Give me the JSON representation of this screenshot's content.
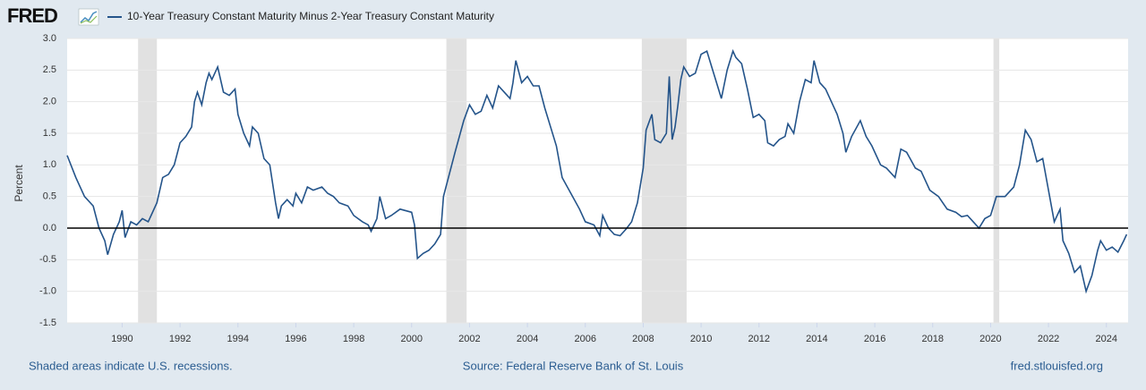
{
  "logo": "FRED",
  "chart_data": {
    "type": "line",
    "y_label": "Percent",
    "series": [
      {
        "name": "10-Year Treasury Constant Maturity Minus 2-Year Treasury Constant Maturity",
        "color": "#24548a",
        "values": [
          1.15,
          0.8,
          0.5,
          0.35,
          0.0,
          -0.2,
          -0.42,
          -0.1,
          0.1,
          0.28,
          -0.15,
          0.1,
          0.05,
          0.15,
          0.1,
          0.2,
          0.4,
          0.8,
          0.85,
          1.0,
          1.35,
          1.45,
          1.6,
          2.0,
          2.15,
          1.95,
          2.3,
          2.45,
          2.35,
          2.55,
          2.15,
          2.1,
          2.2,
          1.8,
          1.5,
          1.3,
          1.6,
          1.5,
          1.1,
          1.0,
          0.7,
          0.4,
          0.15,
          0.35,
          0.45,
          0.35,
          0.55,
          0.4,
          0.65,
          0.6,
          0.65,
          0.55,
          0.5,
          0.4,
          0.35,
          0.2,
          0.1,
          0.05,
          -0.05,
          0.15,
          0.5,
          0.15,
          0.2,
          0.3,
          0.25,
          0.05,
          -0.48,
          -0.4,
          -0.35,
          -0.25,
          -0.1,
          0.5,
          0.85,
          1.2,
          1.7,
          1.95,
          1.8,
          1.85,
          2.1,
          1.9,
          2.25,
          2.15,
          2.05,
          2.3,
          2.65,
          2.3,
          2.4,
          2.25,
          2.25,
          1.9,
          1.6,
          1.3,
          0.8,
          0.55,
          0.3,
          0.1,
          0.05,
          -0.12,
          0.2,
          0.0,
          -0.1,
          -0.12,
          -0.02,
          0.1,
          0.4,
          0.95,
          1.55,
          1.8,
          1.4,
          1.35,
          1.5,
          2.4,
          1.4,
          1.6,
          1.95,
          2.35,
          2.55,
          2.4,
          2.45,
          2.75,
          2.8,
          2.5,
          2.2,
          2.05,
          2.5,
          2.8,
          2.7,
          2.6,
          2.2,
          1.75,
          1.8,
          1.7,
          1.35,
          1.3,
          1.4,
          1.45,
          1.65,
          1.5,
          2.0,
          2.35,
          2.3,
          2.65,
          2.3,
          2.2,
          2.0,
          1.8,
          1.5,
          1.2,
          1.45,
          1.7,
          1.45,
          1.3,
          1.0,
          0.95,
          0.8,
          1.25,
          1.2,
          0.95,
          0.9,
          0.6,
          0.5,
          0.3,
          0.25,
          0.18,
          0.2,
          0.1,
          0.0,
          0.15,
          0.2,
          0.5,
          0.5,
          0.65,
          1.0,
          1.55,
          1.4,
          1.05,
          1.1,
          0.6,
          0.1,
          0.3,
          -0.2,
          -0.4,
          -0.7,
          -0.6,
          -1.0,
          -0.75,
          -0.35,
          -0.2,
          -0.35,
          -0.3,
          -0.38,
          -0.2,
          -0.1
        ]
      }
    ],
    "x": [
      1988.1,
      1988.4,
      1988.7,
      1989.0,
      1989.2,
      1989.4,
      1989.5,
      1989.7,
      1989.9,
      1990.0,
      1990.1,
      1990.3,
      1990.5,
      1990.7,
      1990.9,
      1991.0,
      1991.2,
      1991.4,
      1991.6,
      1991.8,
      1992.0,
      1992.2,
      1992.4,
      1992.5,
      1992.6,
      1992.75,
      1992.9,
      1993.0,
      1993.1,
      1993.3,
      1993.5,
      1993.7,
      1993.9,
      1994.0,
      1994.2,
      1994.4,
      1994.5,
      1994.7,
      1994.9,
      1995.1,
      1995.2,
      1995.3,
      1995.4,
      1995.5,
      1995.7,
      1995.9,
      1996.0,
      1996.2,
      1996.4,
      1996.6,
      1996.9,
      1997.1,
      1997.3,
      1997.5,
      1997.8,
      1998.0,
      1998.3,
      1998.5,
      1998.6,
      1998.8,
      1998.9,
      1999.1,
      1999.3,
      1999.6,
      2000.0,
      2000.1,
      2000.2,
      2000.4,
      2000.6,
      2000.8,
      2001.0,
      2001.1,
      2001.3,
      2001.5,
      2001.8,
      2002.0,
      2002.2,
      2002.4,
      2002.6,
      2002.8,
      2003.0,
      2003.2,
      2003.4,
      2003.5,
      2003.6,
      2003.8,
      2004.0,
      2004.2,
      2004.4,
      2004.6,
      2004.8,
      2005.0,
      2005.2,
      2005.5,
      2005.8,
      2006.0,
      2006.3,
      2006.5,
      2006.6,
      2006.8,
      2007.0,
      2007.2,
      2007.4,
      2007.6,
      2007.8,
      2008.0,
      2008.1,
      2008.3,
      2008.4,
      2008.6,
      2008.8,
      2008.9,
      2009.0,
      2009.1,
      2009.2,
      2009.3,
      2009.4,
      2009.6,
      2009.8,
      2010.0,
      2010.2,
      2010.4,
      2010.6,
      2010.7,
      2010.9,
      2011.1,
      2011.2,
      2011.4,
      2011.6,
      2011.8,
      2012.0,
      2012.2,
      2012.3,
      2012.5,
      2012.7,
      2012.9,
      2013.0,
      2013.2,
      2013.4,
      2013.6,
      2013.8,
      2013.9,
      2014.1,
      2014.3,
      2014.5,
      2014.7,
      2014.9,
      2015.0,
      2015.2,
      2015.5,
      2015.7,
      2015.9,
      2016.2,
      2016.4,
      2016.7,
      2016.9,
      2017.1,
      2017.4,
      2017.6,
      2017.9,
      2018.2,
      2018.5,
      2018.8,
      2019.0,
      2019.2,
      2019.4,
      2019.6,
      2019.8,
      2020.0,
      2020.2,
      2020.5,
      2020.8,
      2021.0,
      2021.2,
      2021.4,
      2021.6,
      2021.8,
      2022.0,
      2022.2,
      2022.4,
      2022.5,
      2022.7,
      2022.9,
      2023.1,
      2023.3,
      2023.5,
      2023.7,
      2023.8,
      2024.0,
      2024.2,
      2024.4,
      2024.6,
      2024.7
    ],
    "recessions": [
      [
        1990.55,
        1991.2
      ],
      [
        2001.2,
        2001.9
      ],
      [
        2007.95,
        2009.5
      ],
      [
        2020.1,
        2020.3
      ]
    ],
    "xlim": [
      1988.1,
      2024.75
    ],
    "xticks": [
      1990,
      1992,
      1994,
      1996,
      1998,
      2000,
      2002,
      2004,
      2006,
      2008,
      2010,
      2012,
      2014,
      2016,
      2018,
      2020,
      2022,
      2024
    ],
    "ylim": [
      -1.5,
      3.0
    ],
    "yticks": [
      {
        "value": 3.0,
        "label": "3.0"
      },
      2.5,
      {
        "value": 2.0,
        "label": "2.0"
      },
      1.5,
      {
        "value": 1.0,
        "label": "1.0"
      },
      0.5,
      {
        "value": 0,
        "label": "0.0"
      },
      -0.5,
      {
        "value": -1.0,
        "label": "-1.0"
      },
      -1.5
    ],
    "grid": true,
    "notes": "Shaded areas indicate U.S. recessions.",
    "source": "Source: Federal Reserve Bank of St. Louis",
    "site": "fred.stlouisfed.org"
  }
}
